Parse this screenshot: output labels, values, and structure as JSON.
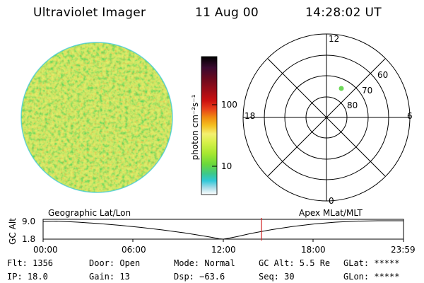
{
  "header": {
    "instrument": "Ultraviolet Imager",
    "date": "11 Aug 00",
    "time": "14:28:02 UT"
  },
  "colorbar": {
    "unit_label": "photon cm⁻²s⁻¹",
    "ticks": [
      "100",
      "10"
    ],
    "colors": [
      "#000000",
      "#3a0a30",
      "#6a0a1e",
      "#9a0c18",
      "#cc1010",
      "#e8401a",
      "#f08a10",
      "#f4c020",
      "#f4f070",
      "#d8f04a",
      "#a8e830",
      "#6ad83a",
      "#3cc88c",
      "#30c8d8",
      "#a8dce8",
      "#ffffff"
    ]
  },
  "polar": {
    "mlt_labels": {
      "top": "12",
      "bottom": "0",
      "left": "18",
      "right": "6"
    },
    "lat_labels": [
      "60",
      "70",
      "80"
    ],
    "marker_color": "#6ed85a"
  },
  "timeline": {
    "left_title": "Geographic Lat/Lon",
    "right_title": "Apex  MLat/MLT",
    "axis_label": "GC Alt",
    "y_ticks": [
      "9.0",
      "1.8"
    ],
    "x_ticks": [
      "00:00",
      "06:00",
      "12:00",
      "18:00",
      "23:59"
    ],
    "cursor_color": "#d02020"
  },
  "status": {
    "flt": "Flt: 1356",
    "ip": "IP: 18.0",
    "door": "Door: Open",
    "gain": "Gain: 13",
    "mode": "Mode: Normal",
    "dsp": "Dsp:  −63.6",
    "gc_alt": "GC Alt: 5.5 Re",
    "seq": "Seq: 30",
    "glat": "GLat: *****",
    "glon": "GLon: *****"
  }
}
